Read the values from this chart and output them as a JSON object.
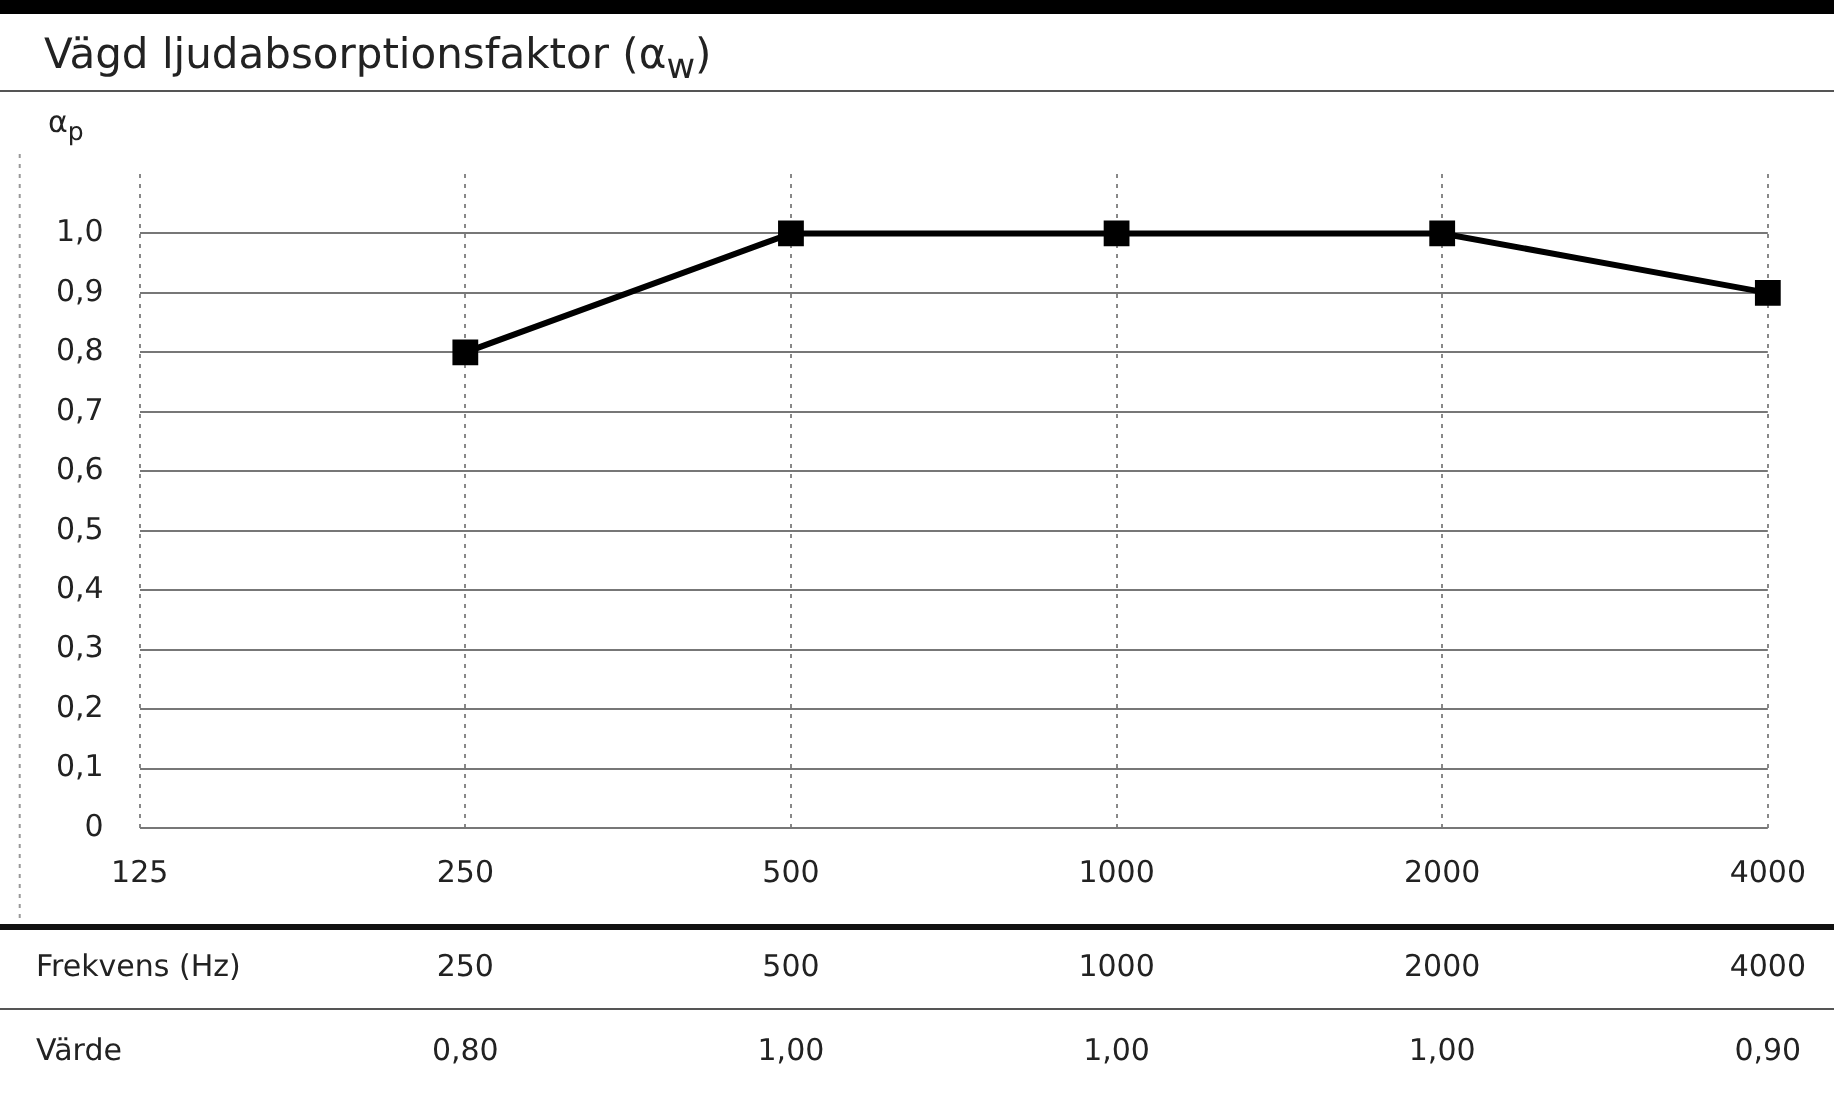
{
  "chart_data": {
    "type": "line",
    "title": "Vägd ljudabsorptionsfaktor (α$_{w}$)",
    "ylabel": "α$_{p}$",
    "categories": [
      "125",
      "250",
      "500",
      "1000",
      "2000",
      "4000"
    ],
    "series": [
      {
        "color": "#000000",
        "values": [
          null,
          0.8,
          1.0,
          1.0,
          1.0,
          0.9
        ],
        "value_labels": [
          null,
          "0,80",
          "1,00",
          "1,00",
          "1,00",
          "0,90"
        ]
      }
    ],
    "ylim": [
      0,
      1.1
    ],
    "yticks": [
      0,
      {
        "value": 0.1,
        "label": "0,1"
      },
      {
        "value": 0.2,
        "label": "0,2"
      },
      {
        "value": 0.3,
        "label": "0,3"
      },
      {
        "value": 0.4,
        "label": "0,4"
      },
      {
        "value": 0.5,
        "label": "0,5"
      },
      {
        "value": 0.6,
        "label": "0,6"
      },
      {
        "value": 0.7,
        "label": "0,7"
      },
      {
        "value": 0.8,
        "label": "0,8"
      },
      {
        "value": 0.9,
        "label": "0,9"
      },
      {
        "value": 1.0,
        "label": "1,0"
      }
    ],
    "annotations": [
      "Frekvens (Hz)",
      "Värde"
    ],
    "grid": true,
    "legend": false,
    "marker": "square",
    "line_style": "solid"
  }
}
